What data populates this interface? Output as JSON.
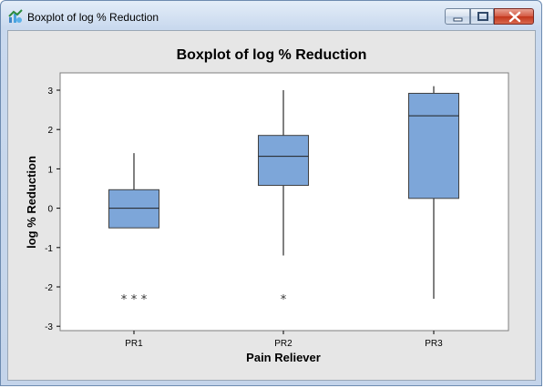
{
  "window": {
    "title": "Boxplot of log % Reduction",
    "icons": {
      "app": "minitab-graph-icon",
      "minimize": "minimize-icon",
      "maximize": "maximize-icon",
      "close": "close-icon"
    }
  },
  "chart_data": {
    "type": "boxplot",
    "title": "Boxplot of log % Reduction",
    "xlabel": "Pain Reliever",
    "ylabel": "log % Reduction",
    "ylim": [
      -3.1,
      3.4
    ],
    "yticks": [
      3,
      2,
      1,
      0,
      -1,
      -2,
      -3
    ],
    "ytick_labels": [
      "3",
      "2",
      "1",
      "0",
      "-1",
      "-2",
      "-3"
    ],
    "grid": false,
    "box_color": "#7da6d9",
    "categories": [
      "PR1",
      "PR2",
      "PR3"
    ],
    "boxes": [
      {
        "label": "PR1",
        "whisker_low": -0.5,
        "q1": -0.5,
        "median": 0.0,
        "q3": 0.47,
        "whisker_high": 1.4,
        "outliers": [
          -2.3,
          -2.3,
          -2.3
        ]
      },
      {
        "label": "PR2",
        "whisker_low": -1.2,
        "q1": 0.58,
        "median": 1.32,
        "q3": 1.85,
        "whisker_high": 3.0,
        "outliers": [
          -2.3
        ]
      },
      {
        "label": "PR3",
        "whisker_low": -2.3,
        "q1": 0.25,
        "median": 2.35,
        "q3": 2.92,
        "whisker_high": 3.1,
        "outliers": []
      }
    ],
    "outlier_symbol": "*"
  }
}
